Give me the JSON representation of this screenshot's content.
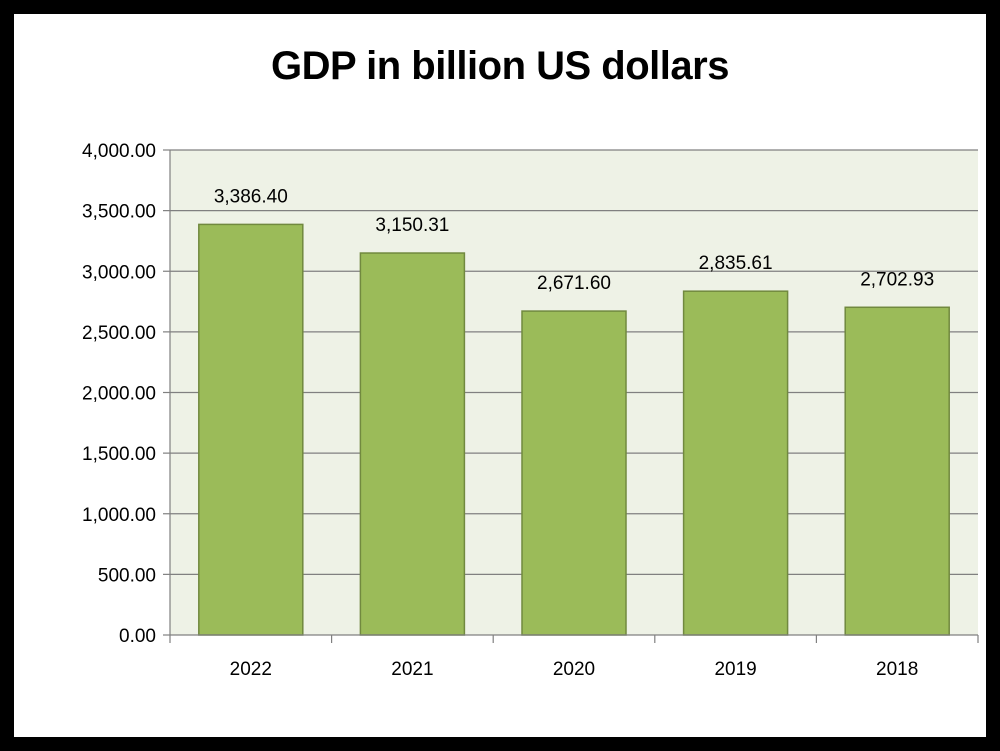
{
  "chart_data": {
    "type": "bar",
    "title": "GDP in billion US dollars",
    "categories": [
      "2022",
      "2021",
      "2020",
      "2019",
      "2018"
    ],
    "values": [
      3386.4,
      3150.31,
      2671.6,
      2835.61,
      2702.93
    ],
    "data_labels": [
      "3,386.40",
      "3,150.31",
      "2,671.60",
      "2,835.61",
      "2,702.93"
    ],
    "y_ticks": [
      0,
      500,
      1000,
      1500,
      2000,
      2500,
      3000,
      3500,
      4000
    ],
    "y_tick_labels": [
      "0.00",
      "500.00",
      "1,000.00",
      "1,500.00",
      "2,000.00",
      "2,500.00",
      "3,000.00",
      "3,500.00",
      "4,000.00"
    ],
    "ylim": [
      0,
      4000
    ],
    "xlabel": "",
    "ylabel": "",
    "grid": true,
    "legend": "none",
    "colors": {
      "bar_fill": "#9bbb59",
      "bar_stroke": "#71893f",
      "plot_bg": "#eef2e6",
      "grid": "#808080",
      "axis": "#808080"
    }
  }
}
